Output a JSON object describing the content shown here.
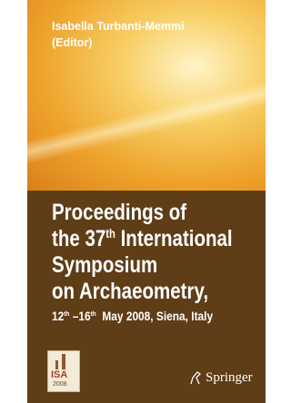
{
  "author": "Isabella Turbanti-Memmi",
  "role": "(Editor)",
  "title_lines": [
    {
      "text": "Proceedings of"
    },
    {
      "before": "the 37",
      "sup": "th",
      "after": " International"
    },
    {
      "text": "Symposium"
    },
    {
      "text": "on Archaeometry,"
    }
  ],
  "dates": {
    "start": "12",
    "start_sup": "th",
    "end": " –16",
    "end_sup": "th",
    "rest": "  May 2008, Siena, Italy"
  },
  "logo": {
    "name": "ISA",
    "year": "2008"
  },
  "publisher": "Springer"
}
